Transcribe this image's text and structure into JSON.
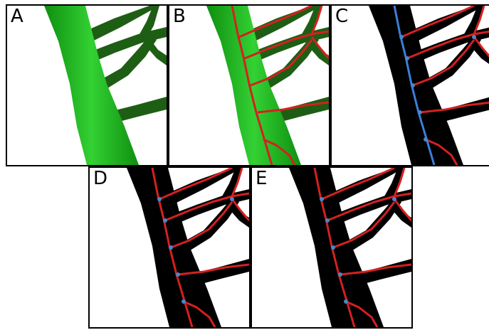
{
  "panels": [
    {
      "id": "A",
      "label": "A",
      "variant": "green"
    },
    {
      "id": "B",
      "label": "B",
      "variant": "green-red"
    },
    {
      "id": "C",
      "label": "C",
      "variant": "black-red-blue"
    },
    {
      "id": "D",
      "label": "D",
      "variant": "black-red"
    },
    {
      "id": "E",
      "label": "E",
      "variant": "black-red"
    }
  ],
  "colors": {
    "vein_green": "#0f8f10",
    "vein_green_light": "#33d133",
    "vein_dark_green": "#1e5e14",
    "skeleton_red": "#d42020",
    "main_vein_blue": "#3a80d8",
    "node_blue": "#4a86c8",
    "black": "#000000",
    "white": "#ffffff"
  }
}
